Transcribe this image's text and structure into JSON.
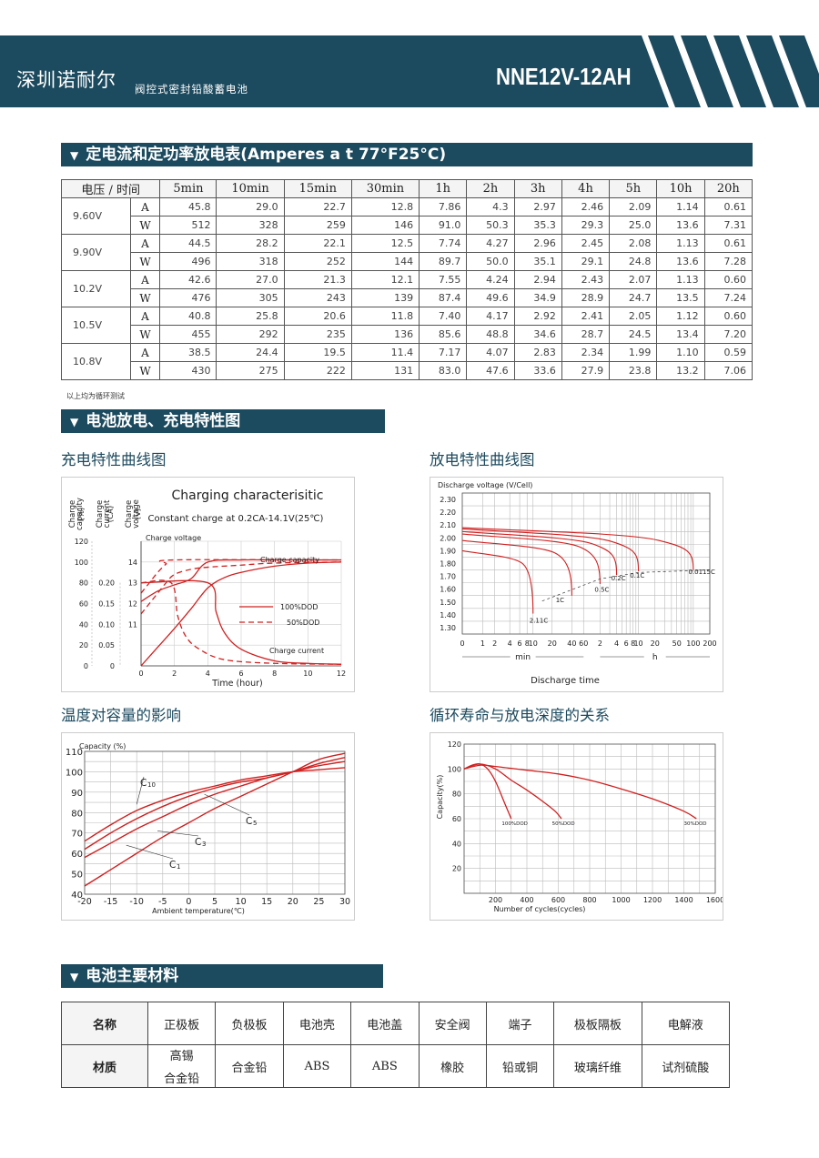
{
  "header": {
    "brand": "深圳诺耐尔",
    "subtitle": "阀控式密封铅酸蓄电池",
    "model": "NNE12V-12AH",
    "color": "#1c4a5e"
  },
  "section1": {
    "title": "定电流和定功率放电表(Amperes a t 77°F25°C)"
  },
  "discharge_table": {
    "corner": "电压 / 时间",
    "columns": [
      "5min",
      "10min",
      "15min",
      "30min",
      "1h",
      "2h",
      "3h",
      "4h",
      "5h",
      "10h",
      "20h"
    ],
    "rows": [
      {
        "voltage": "9.60V",
        "A": [
          "45.8",
          "29.0",
          "22.7",
          "12.8",
          "7.86",
          "4.3",
          "2.97",
          "2.46",
          "2.09",
          "1.14",
          "0.61"
        ],
        "W": [
          "512",
          "328",
          "259",
          "146",
          "91.0",
          "50.3",
          "35.3",
          "29.3",
          "25.0",
          "13.6",
          "7.31"
        ]
      },
      {
        "voltage": "9.90V",
        "A": [
          "44.5",
          "28.2",
          "22.1",
          "12.5",
          "7.74",
          "4.27",
          "2.96",
          "2.45",
          "2.08",
          "1.13",
          "0.61"
        ],
        "W": [
          "496",
          "318",
          "252",
          "144",
          "89.7",
          "50.0",
          "35.1",
          "29.1",
          "24.8",
          "13.6",
          "7.28"
        ]
      },
      {
        "voltage": "10.2V",
        "A": [
          "42.6",
          "27.0",
          "21.3",
          "12.1",
          "7.55",
          "4.24",
          "2.94",
          "2.43",
          "2.07",
          "1.13",
          "0.60"
        ],
        "W": [
          "476",
          "305",
          "243",
          "139",
          "87.4",
          "49.6",
          "34.9",
          "28.9",
          "24.7",
          "13.5",
          "7.24"
        ]
      },
      {
        "voltage": "10.5V",
        "A": [
          "40.8",
          "25.8",
          "20.6",
          "11.8",
          "7.40",
          "4.17",
          "2.92",
          "2.41",
          "2.05",
          "1.12",
          "0.60"
        ],
        "W": [
          "455",
          "292",
          "235",
          "136",
          "85.6",
          "48.8",
          "34.6",
          "28.7",
          "24.5",
          "13.4",
          "7.20"
        ]
      },
      {
        "voltage": "10.8V",
        "A": [
          "38.5",
          "24.4",
          "19.5",
          "11.4",
          "7.17",
          "4.07",
          "2.83",
          "2.34",
          "1.99",
          "1.10",
          "0.59"
        ],
        "W": [
          "430",
          "275",
          "222",
          "131",
          "83.0",
          "47.6",
          "33.6",
          "27.9",
          "23.8",
          "13.2",
          "7.06"
        ]
      }
    ],
    "unit_a": "A",
    "unit_w": "W",
    "note": "以上均为循环测试"
  },
  "section2": {
    "title": "电池放电、充电特性图"
  },
  "charge_chart_title": "充电特性曲线图",
  "discharge_chart_title": "放电特性曲线图",
  "temp_chart_title": "温度对容量的影响",
  "cycle_chart_title": "循环寿命与放电深度的关系",
  "chart_data": [
    {
      "type": "line",
      "title": "Charging characterisitic",
      "subtitle": "Constant charge at 0.2CA-14.1V(25℃)",
      "xlabel": "Time (hour)",
      "axis_labels": [
        "Charge capacity (%)",
        "Charge current (CA)",
        "Charge voltage (V)"
      ],
      "axis_label_lines": [
        [
          "Charge",
          "capacity"
        ],
        [
          "(%)"
        ],
        [
          "Charge",
          "current"
        ],
        [
          "(CA)"
        ],
        [
          "Charge",
          "voltage"
        ],
        [
          "(V)"
        ]
      ],
      "x_ticks": [
        "0",
        "2",
        "4",
        "6",
        "8",
        "10",
        "12"
      ],
      "capacity_ticks": [
        "0",
        "20",
        "40",
        "60",
        "80",
        "100",
        "120"
      ],
      "current_ticks": [
        "0",
        "0.05",
        "0.10",
        "0.15",
        "0.20"
      ],
      "voltage_ticks": [
        "11",
        "12",
        "13",
        "14"
      ],
      "legend": [
        "100%DOD",
        "50%DOD"
      ],
      "annotations": [
        "Charge voltage",
        "Charge capacity",
        "Charge current"
      ],
      "xlim": [
        0,
        12
      ],
      "series": [
        {
          "name": "Charge voltage",
          "dod": "100%DOD",
          "axis": "voltage",
          "x": [
            0,
            1,
            2,
            3,
            4,
            6,
            8,
            10,
            12
          ],
          "values": [
            12.1,
            12.6,
            12.9,
            13.2,
            14.0,
            14.1,
            14.1,
            14.1,
            14.1
          ]
        },
        {
          "name": "Charge voltage",
          "dod": "50%DOD",
          "axis": "voltage",
          "x": [
            0,
            0.5,
            1,
            1.5,
            2,
            12
          ],
          "values": [
            12.5,
            13.0,
            13.5,
            13.9,
            14.1,
            14.1
          ]
        },
        {
          "name": "Charge capacity",
          "dod": "100%DOD",
          "axis": "capacity",
          "x": [
            0,
            1,
            2,
            3,
            4,
            5,
            6,
            8,
            10,
            12
          ],
          "values": [
            0,
            18,
            36,
            55,
            75,
            85,
            90,
            96,
            99,
            100
          ]
        },
        {
          "name": "Charge capacity",
          "dod": "50%DOD",
          "axis": "capacity",
          "x": [
            0,
            0.5,
            1,
            1.5,
            2,
            3,
            4,
            6,
            8,
            12
          ],
          "values": [
            50,
            60,
            70,
            80,
            88,
            93,
            95,
            97,
            99,
            100
          ]
        },
        {
          "name": "Charge current",
          "dod": "100%DOD",
          "axis": "current",
          "x": [
            0,
            4,
            4.5,
            5,
            6,
            8,
            10,
            12
          ],
          "values": [
            0.2,
            0.2,
            0.13,
            0.08,
            0.04,
            0.012,
            0.006,
            0.004
          ]
        },
        {
          "name": "Charge current",
          "dod": "50%DOD",
          "axis": "current",
          "x": [
            0,
            1.8,
            2.2,
            2.7,
            3.5,
            5,
            8,
            12
          ],
          "values": [
            0.2,
            0.2,
            0.12,
            0.07,
            0.04,
            0.015,
            0.006,
            0.004
          ]
        }
      ]
    },
    {
      "type": "line",
      "ylabel": "Discharge voltage (V/Cell)",
      "xlabel": "Discharge time",
      "y_ticks": [
        "1.30",
        "1.40",
        "1.50",
        "1.60",
        "1.70",
        "1.80",
        "1.90",
        "2.00",
        "2.10",
        "2.20",
        "2.30"
      ],
      "x_ticks_min": [
        "0",
        "1",
        "2",
        "4",
        "6",
        "8",
        "10",
        "20",
        "40",
        "60"
      ],
      "x_ticks_h": [
        "2",
        "4",
        "6",
        "8",
        "10",
        "20",
        "50",
        "100",
        "200"
      ],
      "x_group_labels": [
        "min",
        "h"
      ],
      "ylim": [
        1.25,
        2.35
      ],
      "series": [
        {
          "name": "2.11C",
          "end_voltage": 1.41,
          "end_time": "10 min"
        },
        {
          "name": "1C",
          "end_voltage": 1.55,
          "end_time": "40 min"
        },
        {
          "name": "0.5C",
          "end_voltage": 1.64,
          "end_time": "2 h"
        },
        {
          "name": "0.2C",
          "end_voltage": 1.71,
          "end_time": "4 h"
        },
        {
          "name": "0.1C",
          "end_voltage": 1.74,
          "end_time": "10 h"
        },
        {
          "name": "0.0115C",
          "end_voltage": 1.75,
          "end_time": "100 h"
        }
      ]
    },
    {
      "type": "line",
      "ylabel": "Capacity (%)",
      "xlabel": "Ambient temperature(℃)",
      "x": [
        -20,
        -15,
        -10,
        -5,
        0,
        5,
        10,
        15,
        20,
        25,
        30
      ],
      "y_ticks": [
        "40",
        "50",
        "60",
        "70",
        "80",
        "90",
        "100",
        "110"
      ],
      "xlim": [
        -20,
        30
      ],
      "ylim": [
        40,
        110
      ],
      "series": [
        {
          "name": "C10",
          "values": [
            66,
            74,
            81,
            86,
            90,
            93,
            96,
            98,
            100,
            101,
            102
          ]
        },
        {
          "name": "C5",
          "values": [
            62,
            70,
            77,
            83,
            88,
            92,
            95,
            97,
            100,
            103,
            105
          ]
        },
        {
          "name": "C3",
          "values": [
            58,
            65,
            72,
            78,
            84,
            89,
            93,
            97,
            100,
            104,
            107
          ]
        },
        {
          "name": "C1",
          "values": [
            44,
            52,
            60,
            68,
            75,
            82,
            88,
            94,
            100,
            106,
            109
          ]
        }
      ],
      "curve_labels": [
        [
          "C",
          "10"
        ],
        [
          "C",
          "5"
        ],
        [
          "C",
          "3"
        ],
        [
          "C",
          "1"
        ]
      ]
    },
    {
      "type": "line",
      "ylabel": "Capacity(%)",
      "xlabel": "Number of cycles(cycles)",
      "x_ticks": [
        "200",
        "400",
        "600",
        "800",
        "1000",
        "1200",
        "1400",
        "1600"
      ],
      "y_ticks": [
        "20",
        "40",
        "60",
        "80",
        "100",
        "120"
      ],
      "xlim": [
        0,
        1600
      ],
      "ylim": [
        0,
        120
      ],
      "series": [
        {
          "name": "100%DOD",
          "x": [
            0,
            50,
            100,
            150,
            200,
            260,
            300
          ],
          "values": [
            100,
            103,
            104,
            100,
            90,
            72,
            60
          ]
        },
        {
          "name": "50%DOD",
          "x": [
            0,
            100,
            200,
            300,
            400,
            500,
            580,
            620
          ],
          "values": [
            100,
            104,
            100,
            91,
            83,
            74,
            66,
            60
          ]
        },
        {
          "name": "30%DOD",
          "x": [
            0,
            100,
            200,
            400,
            600,
            800,
            1000,
            1200,
            1400,
            1480
          ],
          "values": [
            100,
            103,
            102,
            99,
            96,
            91,
            84,
            76,
            66,
            60
          ]
        }
      ]
    }
  ],
  "section3": {
    "title": "电池主要材料"
  },
  "materials": {
    "header_name": "名称",
    "header_material": "材质",
    "parts": [
      "正极板",
      "负极板",
      "电池壳",
      "电池盖",
      "安全阀",
      "端子",
      "极板隔板",
      "电解液"
    ],
    "material_line1": [
      "高锡",
      "合金铅",
      "ABS",
      "ABS",
      "橡胶",
      "铅或铜",
      "玻璃纤维",
      "试剂硫酸"
    ],
    "material_line2": [
      "合金铅",
      "",
      "",
      "",
      "",
      "",
      "",
      ""
    ]
  }
}
